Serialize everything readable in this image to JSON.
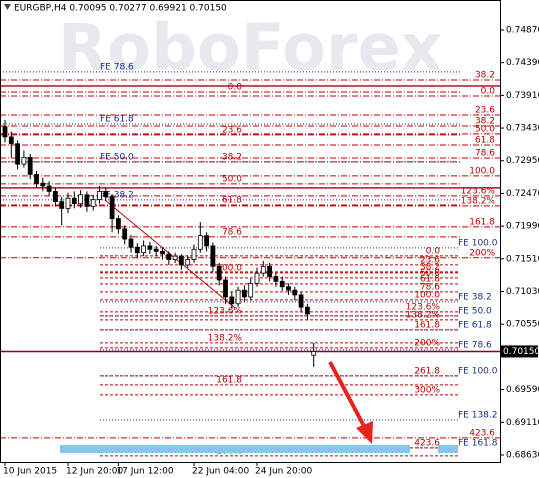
{
  "chart_data": {
    "type": "candlestick",
    "title": "EURGBP,H4  0.70095 0.70277 0.69921 0.70150",
    "watermark": "RoboForex",
    "ylim": [
      0.68527,
      0.7531
    ],
    "yticks": [
      {
        "value": 0.7487,
        "label": "0.74870"
      },
      {
        "value": 0.7439,
        "label": "0.74390"
      },
      {
        "value": 0.7391,
        "label": "0.73910"
      },
      {
        "value": 0.7343,
        "label": "0.73430"
      },
      {
        "value": 0.7295,
        "label": "0.72950"
      },
      {
        "value": 0.7247,
        "label": "0.72470"
      },
      {
        "value": 0.7199,
        "label": "0.71990"
      },
      {
        "value": 0.7151,
        "label": "0.71510"
      },
      {
        "value": 0.7103,
        "label": "0.71030"
      },
      {
        "value": 0.7055,
        "label": "0.70550"
      },
      {
        "value": 0.6959,
        "label": "0.69590"
      },
      {
        "value": 0.6911,
        "label": "0.69110"
      },
      {
        "value": 0.6863,
        "label": "0.68630"
      }
    ],
    "categories": [
      "10 Jun 2015",
      null,
      null,
      null,
      null,
      null,
      null,
      null,
      null,
      null,
      "12 Jun 20:00",
      null,
      null,
      null,
      null,
      null,
      null,
      null,
      "17 Jun 12:00",
      null,
      null,
      null,
      null,
      null,
      null,
      null,
      null,
      null,
      null,
      null,
      "22 Jun 04:00",
      null,
      null,
      null,
      null,
      null,
      null,
      null,
      null,
      null,
      "24 Jun 20:00",
      null,
      null,
      null,
      null,
      null,
      null,
      null,
      null,
      null
    ],
    "open": [
      0.7345,
      0.733,
      0.732,
      0.729,
      0.73,
      0.7275,
      0.7262,
      0.7258,
      0.725,
      0.7235,
      0.7225,
      0.724,
      0.7232,
      0.7245,
      0.7228,
      0.7238,
      0.725,
      0.7242,
      0.721,
      0.7195,
      0.718,
      0.7168,
      0.716,
      0.717,
      0.7165,
      0.7162,
      0.7158,
      0.715,
      0.7155,
      0.7142,
      0.715,
      0.7165,
      0.7185,
      0.717,
      0.714,
      0.712,
      0.7095,
      0.7085,
      0.7105,
      0.7095,
      0.7115,
      0.713,
      0.714,
      0.7125,
      0.7118,
      0.711,
      0.7105,
      0.7098,
      0.708,
      0.70095
    ],
    "high": [
      0.7355,
      0.7338,
      0.7325,
      0.731,
      0.7305,
      0.728,
      0.727,
      0.7265,
      0.7255,
      0.7242,
      0.7248,
      0.725,
      0.7252,
      0.725,
      0.7245,
      0.7258,
      0.7256,
      0.7246,
      0.7215,
      0.72,
      0.7186,
      0.7174,
      0.7178,
      0.7176,
      0.717,
      0.7168,
      0.7162,
      0.716,
      0.7158,
      0.7156,
      0.7172,
      0.7205,
      0.719,
      0.7175,
      0.7145,
      0.7125,
      0.7102,
      0.711,
      0.7112,
      0.7122,
      0.7138,
      0.7148,
      0.7145,
      0.713,
      0.7125,
      0.7115,
      0.711,
      0.7102,
      0.7085,
      0.70277
    ],
    "low": [
      0.7322,
      0.73,
      0.7282,
      0.7285,
      0.7268,
      0.7255,
      0.725,
      0.7244,
      0.7228,
      0.72,
      0.7218,
      0.7225,
      0.7226,
      0.722,
      0.7222,
      0.7232,
      0.7236,
      0.719,
      0.7188,
      0.7172,
      0.716,
      0.7152,
      0.7155,
      0.7158,
      0.7155,
      0.715,
      0.7142,
      0.7145,
      0.7135,
      0.7138,
      0.7145,
      0.716,
      0.7162,
      0.7132,
      0.7112,
      0.7085,
      0.7078,
      0.708,
      0.7088,
      0.709,
      0.711,
      0.7125,
      0.7118,
      0.711,
      0.7104,
      0.7098,
      0.709,
      0.7072,
      0.7062,
      0.69921
    ],
    "close": [
      0.733,
      0.732,
      0.729,
      0.73,
      0.7275,
      0.7262,
      0.7258,
      0.725,
      0.7235,
      0.7225,
      0.724,
      0.7232,
      0.7245,
      0.7228,
      0.7238,
      0.725,
      0.7242,
      0.721,
      0.7195,
      0.718,
      0.7168,
      0.716,
      0.717,
      0.7165,
      0.7162,
      0.7158,
      0.715,
      0.7155,
      0.7142,
      0.715,
      0.7165,
      0.7185,
      0.717,
      0.714,
      0.712,
      0.7095,
      0.7085,
      0.7105,
      0.7095,
      0.7115,
      0.713,
      0.714,
      0.7125,
      0.7118,
      0.711,
      0.7105,
      0.7098,
      0.708,
      0.707,
      0.7015
    ],
    "solid_levels": [
      0.74048,
      0.72551
    ],
    "current_price": {
      "value": 0.7015,
      "label": "0.70150"
    },
    "level_groups": [
      {
        "color": "#c00000",
        "style": "dashdot",
        "levels": [
          {
            "label": "38.2",
            "price": 0.74136
          },
          {
            "label": "0.0",
            "price": 0.73901
          },
          {
            "label": "23.6",
            "price": 0.73622
          },
          {
            "label": "38.2",
            "price": 0.73461
          },
          {
            "label": "50.0",
            "price": 0.73344
          },
          {
            "label": "61.8",
            "price": 0.73182
          },
          {
            "label": "78.6",
            "price": 0.72991
          },
          {
            "label": "100.0",
            "price": 0.72727
          },
          {
            "label": "123.6%",
            "price": 0.72434
          },
          {
            "label": "138.2%",
            "price": 0.72287
          },
          {
            "label": "161.8",
            "price": 0.71979
          },
          {
            "label": "200%",
            "price": 0.71525
          },
          {
            "label": "423.6",
            "price": 0.68881
          }
        ]
      },
      {
        "color": "#c00000",
        "style": "dashdot",
        "levels": [
          {
            "label": "0.0",
            "price": 0.7396
          },
          {
            "label": "23.6",
            "price": 0.73329
          },
          {
            "label": "38.2",
            "price": 0.72933
          },
          {
            "label": "50.0",
            "price": 0.7261
          },
          {
            "label": "61.8",
            "price": 0.72301
          },
          {
            "label": "78.6",
            "price": 0.71832
          }
        ]
      },
      {
        "color": "#c00000",
        "style": "dash",
        "levels": [
          {
            "label": "0.0",
            "price": 0.71553
          },
          {
            "label": "23.6",
            "price": 0.71421
          },
          {
            "label": "38.2",
            "price": 0.71318
          },
          {
            "label": "50.0",
            "price": 0.7123
          },
          {
            "label": "61.8",
            "price": 0.71142
          },
          {
            "label": "78.6",
            "price": 0.71024
          },
          {
            "label": "100.0",
            "price": 0.70907
          },
          {
            "label": "123.6%",
            "price": 0.70731
          },
          {
            "label": "138.2%",
            "price": 0.70614
          },
          {
            "label": "161.8",
            "price": 0.70467
          },
          {
            "label": "200%",
            "price": 0.70203
          },
          {
            "label": "261.8",
            "price": 0.69792
          },
          {
            "label": "300%",
            "price": 0.69513
          },
          {
            "label": "423.6",
            "price": 0.68735
          }
        ]
      },
      {
        "color": "#c00000",
        "style": "dash",
        "levels": [
          {
            "label": "100.0",
            "price": 0.71303
          },
          {
            "label": "123.6%",
            "price": 0.70672
          },
          {
            "label": "138.2%",
            "price": 0.70276
          },
          {
            "label": "161.8",
            "price": 0.69659
          },
          {
            "label": "200%",
            "price": 0.68617
          }
        ]
      },
      {
        "color": "#1c2e8c",
        "style": "dot",
        "levels": [
          {
            "label": "FE 100.0",
            "price": 0.7167
          },
          {
            "label": "FE 38.2",
            "price": 0.70878
          },
          {
            "label": "FE 50.0",
            "price": 0.70672
          },
          {
            "label": "FE 61.8",
            "price": 0.70467
          },
          {
            "label": "FE 78.6",
            "price": 0.70173
          },
          {
            "label": "FE 100.0",
            "price": 0.69792
          },
          {
            "label": "FE 138.2",
            "price": 0.69146
          },
          {
            "label": "FE 161.8",
            "price": 0.68735
          }
        ]
      },
      {
        "color": "#1c2e8c",
        "style": "dot",
        "levels": [
          {
            "label": "FE 78.6",
            "price": 0.74254
          },
          {
            "label": "FE 61.8",
            "price": 0.7349
          },
          {
            "label": "FE 50.0",
            "price": 0.72933
          },
          {
            "label": "FE 38.2",
            "price": 0.72375
          }
        ]
      }
    ]
  }
}
